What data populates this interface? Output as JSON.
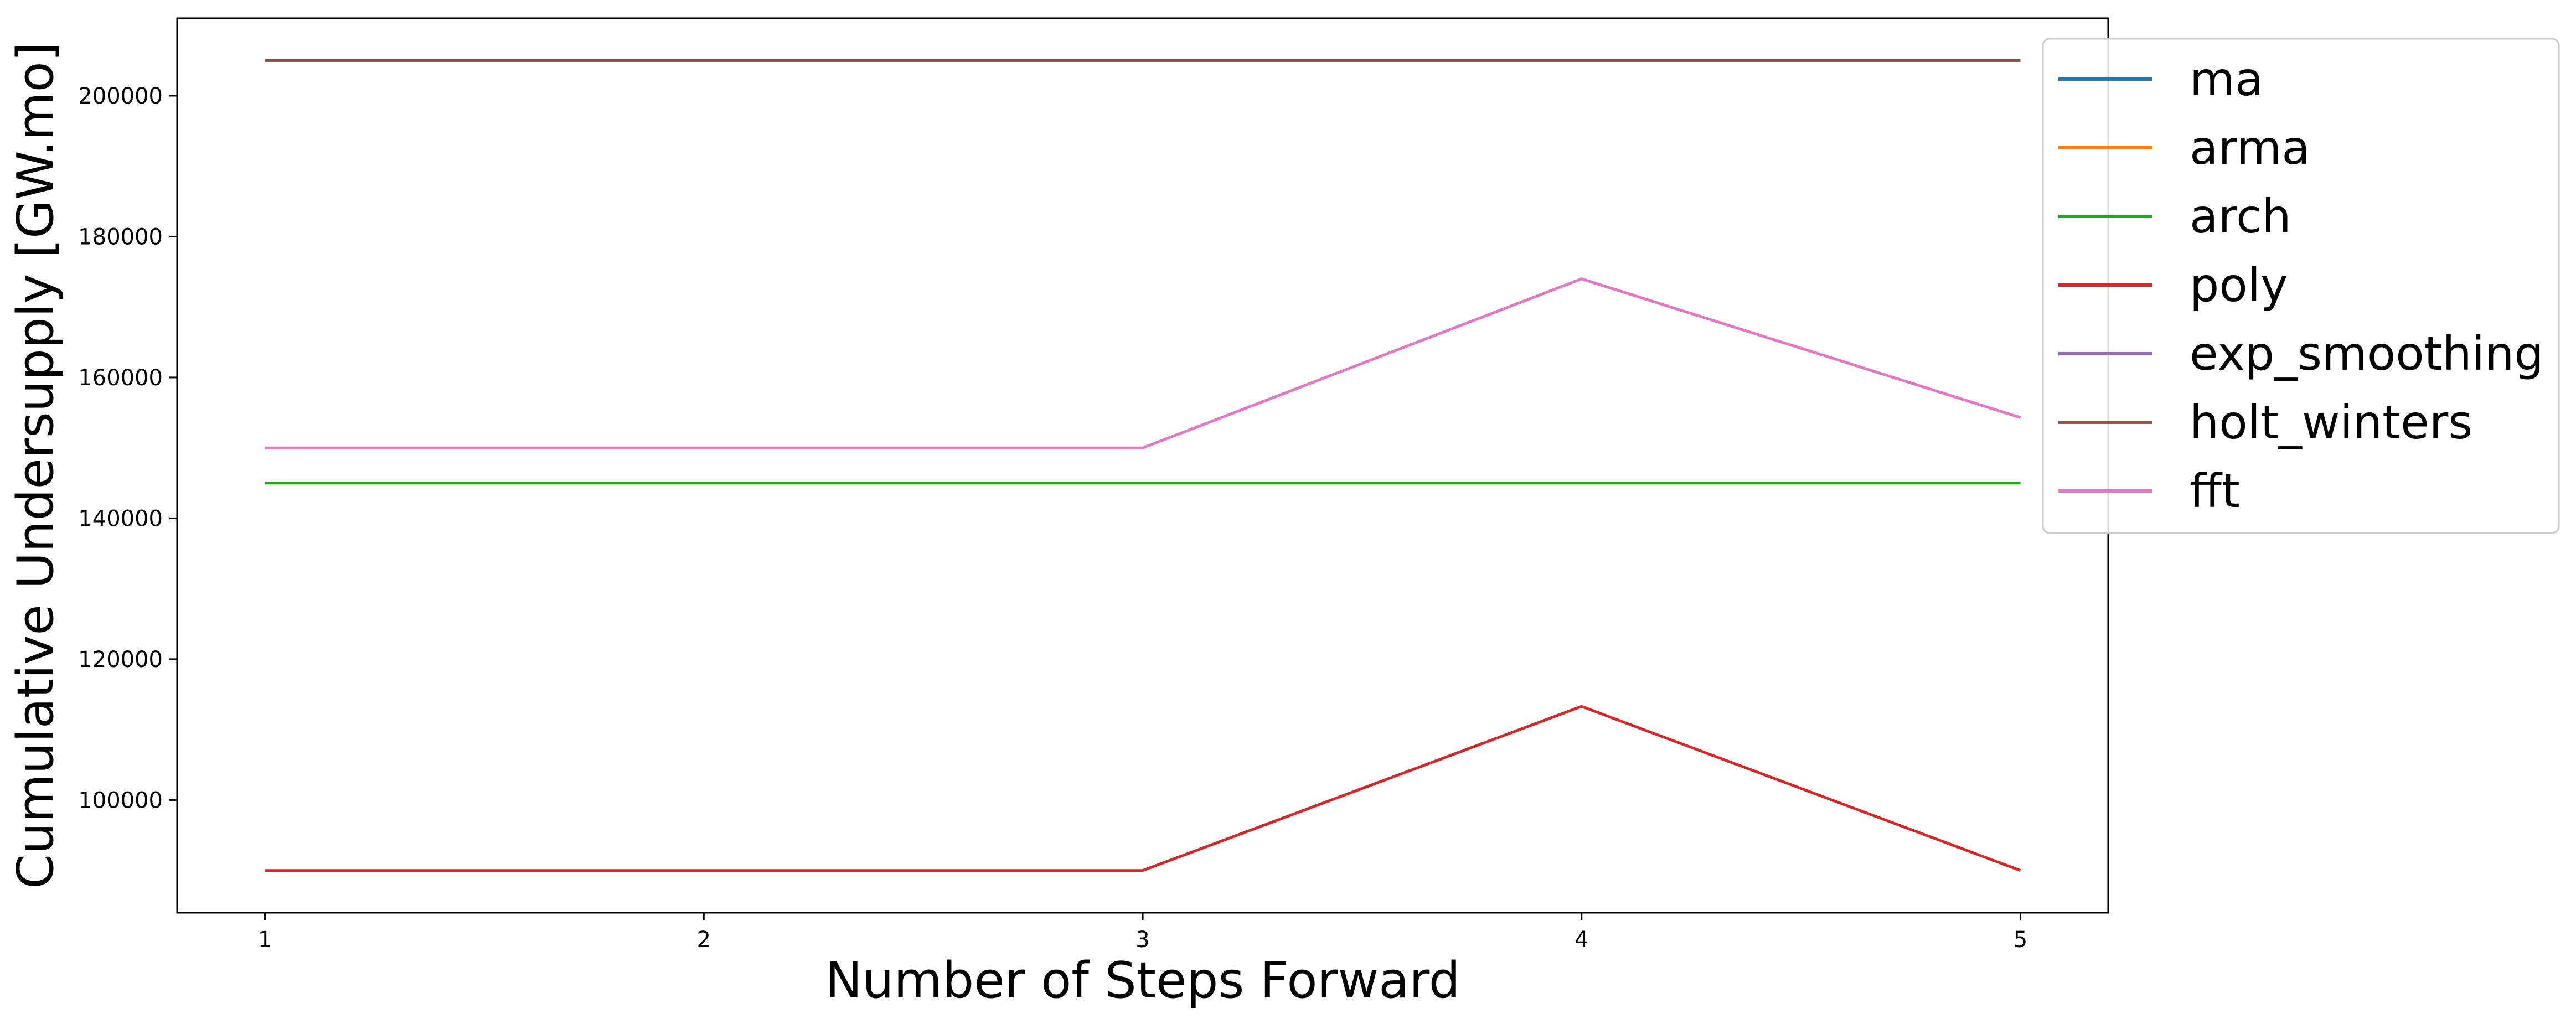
{
  "chart_data": {
    "type": "line",
    "title": "",
    "xlabel": "Number of Steps Forward",
    "ylabel": "Cumulative Undersupply [GW.mo]",
    "x": [
      1,
      2,
      3,
      4,
      5
    ],
    "x_ticks": [
      "1",
      "2",
      "3",
      "4",
      "5"
    ],
    "xlim": [
      0.8,
      5.2
    ],
    "ylim": [
      84000,
      211000
    ],
    "y_ticks": [
      "100000",
      "120000",
      "140000",
      "160000",
      "180000",
      "200000"
    ],
    "grid": false,
    "legend_position": "top-right",
    "series": [
      {
        "name": "ma",
        "color": "#1f77b4",
        "values": [
          205000,
          205000,
          205000,
          205000,
          205000
        ]
      },
      {
        "name": "arma",
        "color": "#ff7f0e",
        "values": [
          205000,
          205000,
          205000,
          205000,
          205000
        ]
      },
      {
        "name": "arch",
        "color": "#2ca02c",
        "values": [
          145000,
          145000,
          145000,
          145000,
          145000
        ]
      },
      {
        "name": "poly",
        "color": "#d62728",
        "values": [
          90000,
          90000,
          90000,
          113300,
          90000
        ]
      },
      {
        "name": "exp_smoothing",
        "color": "#9467bd",
        "values": [
          205000,
          205000,
          205000,
          205000,
          205000
        ]
      },
      {
        "name": "holt_winters",
        "color": "#8c564b",
        "values": [
          205000,
          205000,
          205000,
          205000,
          205000
        ]
      },
      {
        "name": "fft",
        "color": "#e377c2",
        "values": [
          150000,
          150000,
          150000,
          174000,
          154300
        ]
      }
    ]
  }
}
